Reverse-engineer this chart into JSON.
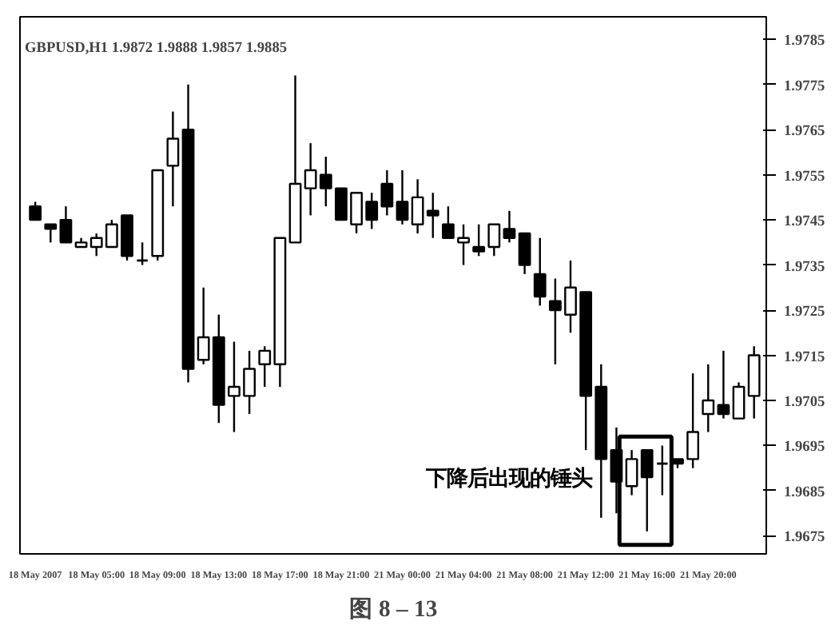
{
  "chart_data": {
    "type": "candlestick",
    "annotations": [
      "GBPUSD,H1 1.9872 1.9888 1.9857 1.9885",
      "下降后出现的锤头",
      "图 8 – 13"
    ],
    "categories": [
      "18 May 2007",
      null,
      null,
      null,
      "18 May 05:00",
      null,
      null,
      null,
      "18 May 09:00",
      null,
      null,
      null,
      "18 May 13:00",
      null,
      null,
      null,
      "18 May 17:00",
      null,
      null,
      null,
      "18 May 21:00",
      null,
      null,
      null,
      "21 May 00:00",
      null,
      null,
      null,
      "21 May 04:00",
      null,
      null,
      null,
      "21 May 08:00",
      null,
      null,
      null,
      "21 May 12:00",
      null,
      null,
      null,
      "21 May 16:00",
      null,
      null,
      null,
      "21 May 20:00",
      null,
      null,
      null
    ],
    "ohlc": [
      [
        1.9748,
        1.9749,
        1.9745,
        1.9745
      ],
      [
        1.9744,
        1.9744,
        1.974,
        1.9743
      ],
      [
        1.9745,
        1.9748,
        1.974,
        1.974
      ],
      [
        1.9739,
        1.9741,
        1.9739,
        1.974
      ],
      [
        1.9739,
        1.9742,
        1.9737,
        1.9741
      ],
      [
        1.9739,
        1.9745,
        1.9739,
        1.9744
      ],
      [
        1.9746,
        1.9746,
        1.9736,
        1.9737
      ],
      [
        1.9736,
        1.974,
        1.9735,
        1.9736
      ],
      [
        1.9737,
        1.9756,
        1.9736,
        1.9756
      ],
      [
        1.9757,
        1.9769,
        1.9748,
        1.9763
      ],
      [
        1.9765,
        1.9775,
        1.9709,
        1.9712
      ],
      [
        1.9714,
        1.973,
        1.9713,
        1.9719
      ],
      [
        1.9719,
        1.9724,
        1.97,
        1.9704
      ],
      [
        1.9706,
        1.9718,
        1.9698,
        1.9708
      ],
      [
        1.9706,
        1.9716,
        1.9702,
        1.9712
      ],
      [
        1.9713,
        1.9717,
        1.9708,
        1.9716
      ],
      [
        1.9713,
        1.9741,
        1.9708,
        1.9741
      ],
      [
        1.974,
        1.9777,
        1.974,
        1.9753
      ],
      [
        1.9752,
        1.9762,
        1.9746,
        1.9756
      ],
      [
        1.9755,
        1.9759,
        1.9748,
        1.9752
      ],
      [
        1.9752,
        1.9752,
        1.9745,
        1.9745
      ],
      [
        1.9744,
        1.9751,
        1.9742,
        1.9751
      ],
      [
        1.9749,
        1.9751,
        1.9743,
        1.9745
      ],
      [
        1.9753,
        1.9756,
        1.9746,
        1.9748
      ],
      [
        1.9749,
        1.9756,
        1.9744,
        1.9745
      ],
      [
        1.9744,
        1.9754,
        1.9742,
        1.975
      ],
      [
        1.9747,
        1.9751,
        1.9741,
        1.9746
      ],
      [
        1.9744,
        1.9748,
        1.9741,
        1.9741
      ],
      [
        1.974,
        1.9744,
        1.9735,
        1.9741
      ],
      [
        1.9739,
        1.9744,
        1.9737,
        1.9738
      ],
      [
        1.9739,
        1.9744,
        1.9737,
        1.9744
      ],
      [
        1.9743,
        1.9747,
        1.974,
        1.9741
      ],
      [
        1.9742,
        1.9742,
        1.9733,
        1.9735
      ],
      [
        1.9733,
        1.9741,
        1.9726,
        1.9728
      ],
      [
        1.9727,
        1.9732,
        1.9713,
        1.9725
      ],
      [
        1.9724,
        1.9736,
        1.972,
        1.973
      ],
      [
        1.9729,
        1.9729,
        1.9694,
        1.9706
      ],
      [
        1.9708,
        1.9713,
        1.9679,
        1.9692
      ],
      [
        1.9694,
        1.9699,
        1.968,
        1.9687
      ],
      [
        1.9686,
        1.9694,
        1.9684,
        1.9692
      ],
      [
        1.9694,
        1.9694,
        1.9676,
        1.9688
      ],
      [
        1.9691,
        1.9695,
        1.9684,
        1.9691
      ],
      [
        1.9692,
        1.9692,
        1.969,
        1.9691
      ],
      [
        1.9692,
        1.9711,
        1.969,
        1.9698
      ],
      [
        1.9702,
        1.9713,
        1.9698,
        1.9705
      ],
      [
        1.9704,
        1.9716,
        1.9701,
        1.9702
      ],
      [
        1.9701,
        1.9709,
        1.9701,
        1.9708
      ],
      [
        1.9706,
        1.9717,
        1.9701,
        1.9715
      ]
    ],
    "colors": [
      "#000000",
      "#000000",
      "#000000",
      "#ffffff",
      "#ffffff",
      "#ffffff",
      "#000000",
      "#000000",
      "#ffffff",
      "#ffffff",
      "#000000",
      "#ffffff",
      "#000000",
      "#ffffff",
      "#ffffff",
      "#ffffff",
      "#ffffff",
      "#ffffff",
      "#ffffff",
      "#000000",
      "#000000",
      "#ffffff",
      "#000000",
      "#000000",
      "#000000",
      "#ffffff",
      "#000000",
      "#000000",
      "#ffffff",
      "#000000",
      "#ffffff",
      "#000000",
      "#000000",
      "#000000",
      "#000000",
      "#ffffff",
      "#000000",
      "#000000",
      "#000000",
      "#ffffff",
      "#000000",
      "#000000",
      "#000000",
      "#ffffff",
      "#ffffff",
      "#000000",
      "#ffffff",
      "#ffffff"
    ],
    "ylim": [
      1.9671,
      1.979
    ],
    "yticks": [
      1.9675,
      1.9685,
      1.9695,
      1.9705,
      1.9715,
      1.9725,
      1.9735,
      1.9745,
      1.9755,
      1.9765,
      1.9775,
      1.9785
    ],
    "grid": false
  }
}
